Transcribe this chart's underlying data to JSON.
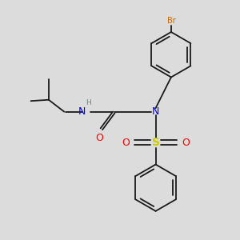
{
  "background_color": "#dcdcdc",
  "bond_color": "#1a1a1a",
  "bond_lw": 1.3,
  "N_color": "#0000ff",
  "O_color": "#ff0000",
  "S_color": "#cccc00",
  "Br_color": "#cc6600",
  "H_color": "#5c8a8a",
  "figsize": [
    3.0,
    3.0
  ],
  "dpi": 100,
  "xlim": [
    0,
    10
  ],
  "ylim": [
    0,
    10
  ]
}
